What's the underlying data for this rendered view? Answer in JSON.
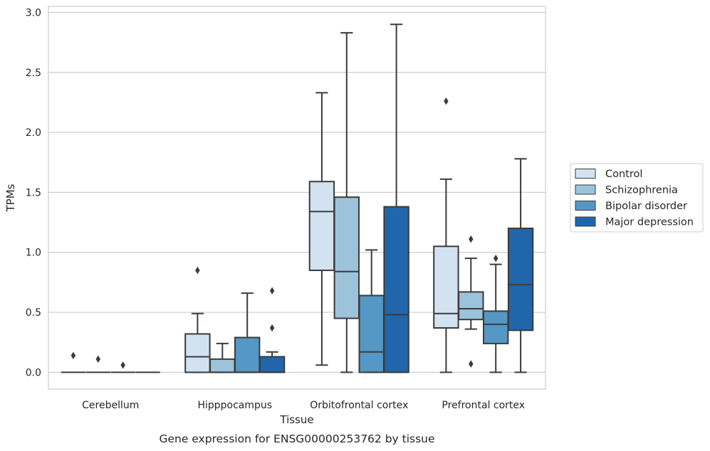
{
  "chart_data": {
    "type": "box",
    "title": "",
    "caption": "Gene expression for ENSG00000253762 by tissue",
    "xlabel": "Tissue",
    "ylabel": "TPMs",
    "ylim": [
      -0.14,
      3.05
    ],
    "yticks": [
      "0.0",
      "0.5",
      "1.0",
      "1.5",
      "2.0",
      "2.5",
      "3.0"
    ],
    "grid": "horizontal",
    "legend_position": "right",
    "categories": [
      "Cerebellum",
      "Hipppocampus",
      "Orbitofrontal cortex",
      "Prefrontal cortex"
    ],
    "series": [
      {
        "name": "Control",
        "color": "#d3e2f1",
        "boxes": [
          {
            "whisker_low": 0,
            "q1": 0,
            "median": 0,
            "q3": 0,
            "whisker_high": 0,
            "outliers": [
              0.14
            ]
          },
          {
            "whisker_low": 0,
            "q1": 0,
            "median": 0.13,
            "q3": 0.32,
            "whisker_high": 0.49,
            "outliers": [
              0.85
            ]
          },
          {
            "whisker_low": 0.06,
            "q1": 0.85,
            "median": 1.34,
            "q3": 1.59,
            "whisker_high": 2.33,
            "outliers": []
          },
          {
            "whisker_low": 0,
            "q1": 0.37,
            "median": 0.49,
            "q3": 1.05,
            "whisker_high": 1.61,
            "outliers": [
              2.26
            ]
          }
        ]
      },
      {
        "name": "Schizophrenia",
        "color": "#9cc3da",
        "boxes": [
          {
            "whisker_low": 0,
            "q1": 0,
            "median": 0,
            "q3": 0,
            "whisker_high": 0,
            "outliers": [
              0.11
            ]
          },
          {
            "whisker_low": 0,
            "q1": 0,
            "median": 0,
            "q3": 0.11,
            "whisker_high": 0.24,
            "outliers": []
          },
          {
            "whisker_low": 0,
            "q1": 0.45,
            "median": 0.84,
            "q3": 1.46,
            "whisker_high": 2.83,
            "outliers": []
          },
          {
            "whisker_low": 0.36,
            "q1": 0.44,
            "median": 0.53,
            "q3": 0.67,
            "whisker_high": 0.95,
            "outliers": [
              0.07,
              1.11
            ]
          }
        ]
      },
      {
        "name": "Bipolar disorder",
        "color": "#5597c5",
        "boxes": [
          {
            "whisker_low": 0,
            "q1": 0,
            "median": 0,
            "q3": 0,
            "whisker_high": 0,
            "outliers": [
              0.06
            ]
          },
          {
            "whisker_low": 0,
            "q1": 0,
            "median": 0,
            "q3": 0.29,
            "whisker_high": 0.66,
            "outliers": []
          },
          {
            "whisker_low": 0,
            "q1": 0,
            "median": 0.17,
            "q3": 0.64,
            "whisker_high": 1.02,
            "outliers": []
          },
          {
            "whisker_low": 0,
            "q1": 0.24,
            "median": 0.4,
            "q3": 0.51,
            "whisker_high": 0.9,
            "outliers": [
              0.95
            ]
          }
        ]
      },
      {
        "name": "Major depression",
        "color": "#2166ab",
        "boxes": [
          {
            "whisker_low": 0,
            "q1": 0,
            "median": 0,
            "q3": 0,
            "whisker_high": 0,
            "outliers": []
          },
          {
            "whisker_low": 0,
            "q1": 0,
            "median": 0,
            "q3": 0.13,
            "whisker_high": 0.17,
            "outliers": [
              0.37,
              0.68
            ]
          },
          {
            "whisker_low": 0,
            "q1": 0,
            "median": 0.48,
            "q3": 1.38,
            "whisker_high": 2.9,
            "outliers": []
          },
          {
            "whisker_low": 0,
            "q1": 0.35,
            "median": 0.73,
            "q3": 1.2,
            "whisker_high": 1.78,
            "outliers": []
          }
        ]
      }
    ]
  }
}
